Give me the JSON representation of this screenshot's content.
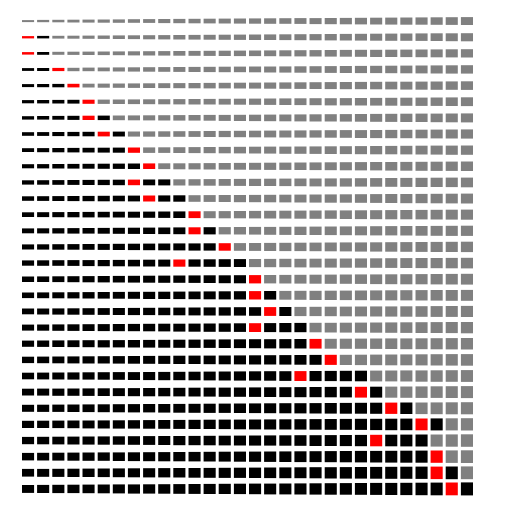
{
  "colors": {
    "background": "#ffffff",
    "unfilled": "#808080",
    "filled": "#000000",
    "highlight": "#ff0000"
  },
  "grid": {
    "rows": 30,
    "cols": 30,
    "row_states": [
      "000000000000000000000000000000",
      "210000000000000000000000000000",
      "210000000000000000000000000000",
      "112000000000000000000000000000",
      "111200000000000000000000000000",
      "111120000000000000000000000000",
      "111121000000000000000000000000",
      "111112100000000000000000000000",
      "111111120000000000000000000000",
      "111111112000000000000000000000",
      "111111121100000000000000000000",
      "111111112110000000000000000000",
      "111111111112000000000000000000",
      "111111111112100000000000000000",
      "111111111111120000000000000000",
      "111111111121111000000000000000",
      "111111111111111200000000000000",
      "111111111111111210000000000000",
      "111111111111111121000000000000",
      "111111111111111211100000000000",
      "111111111111111111120000000000",
      "111111111111111111112000000000",
      "111111111111111111211110000000",
      "111111111111111111111121000000",
      "111111111111111111111111210000",
      "111111111111111111111111112100",
      "111111111111111111111112111000",
      "111111111111111111111111111200",
      "111111111111111111111111111210",
      "111111111111111111111111111121"
    ]
  }
}
